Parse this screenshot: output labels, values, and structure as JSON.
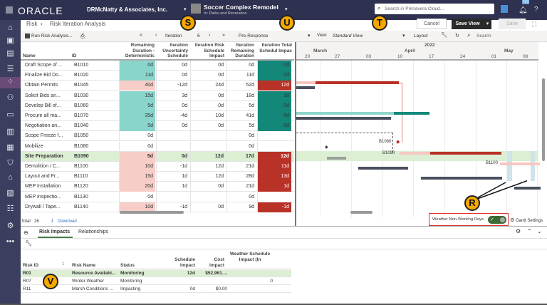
{
  "topbar": {
    "logo": "ORACLE",
    "company": "DRMcNatty & Associates, Inc.",
    "project_name": "Soccer Complex Remodel",
    "project_sub": "In: Parks and Recreation",
    "search_placeholder": "Search in Primavera Cloud...",
    "notification_count": "493"
  },
  "breadcrumb": {
    "root": "Risk",
    "current": "Risk Iteration Analysis"
  },
  "actions": {
    "cancel": "Cancel",
    "save_view": "Save View",
    "save": "Save"
  },
  "toolbar": {
    "run": "Run Risk Analysis...",
    "iteration_label": "Iteration",
    "iteration_value": "6",
    "response": "Pre-Response",
    "view_label": "View:",
    "view_value": "Standard View",
    "layout": "Layout",
    "search": "Search"
  },
  "columns": [
    "Name",
    "ID",
    "Remaining Duration - Deterministic",
    "Iteration Uncertainty Schedule",
    "Iteration Risk Schedule Impact",
    "Iteration Remaining Duration",
    "Iteration Total Schedul Impac"
  ],
  "rows": [
    {
      "name": "Draft Scope of ...",
      "id": "B1010",
      "rdd": "0d",
      "ius": "0d",
      "iri": "0d",
      "ird": "0d",
      "its": "0d",
      "c": "g"
    },
    {
      "name": "Finalize Bid Do...",
      "id": "B1020",
      "rdd": "11d",
      "ius": "0d",
      "iri": "0d",
      "ird": "11d",
      "its": "0d",
      "c": "g"
    },
    {
      "name": "Obtain Permits",
      "id": "B1045",
      "rdd": "40d",
      "ius": "-12d",
      "iri": "24d",
      "ird": "52d",
      "its": "12d",
      "c": "r"
    },
    {
      "name": "Solicit Bids an...",
      "id": "B1030",
      "rdd": "15d",
      "ius": "3d",
      "iri": "0d",
      "ird": "18d",
      "its": "3d",
      "c": "g"
    },
    {
      "name": "Develop Bill of...",
      "id": "B1060",
      "rdd": "5d",
      "ius": "0d",
      "iri": "0d",
      "ird": "5d",
      "its": "0d",
      "c": "g"
    },
    {
      "name": "Procure all ma...",
      "id": "B1070",
      "rdd": "35d",
      "ius": "-4d",
      "iri": "10d",
      "ird": "41d",
      "its": "6d",
      "c": "g"
    },
    {
      "name": "Negotiation an...",
      "id": "B1040",
      "rdd": "5d",
      "ius": "0d",
      "iri": "0d",
      "ird": "5d",
      "its": "0d",
      "c": "g"
    },
    {
      "name": "Scope Freeze f...",
      "id": "B1050",
      "rdd": "0d",
      "ius": "",
      "iri": "",
      "ird": "0d",
      "its": "",
      "c": "n"
    },
    {
      "name": "Mobilize",
      "id": "B1080",
      "rdd": "0d",
      "ius": "",
      "iri": "",
      "ird": "0d",
      "its": "",
      "c": "n"
    },
    {
      "name": "Site Preparation",
      "id": "B1090",
      "rdd": "5d",
      "ius": "0d",
      "iri": "12d",
      "ird": "17d",
      "its": "12d",
      "c": "r"
    },
    {
      "name": "Demolition / C...",
      "id": "B1100",
      "rdd": "10d",
      "ius": "-1d",
      "iri": "12d",
      "ird": "21d",
      "its": "11d",
      "c": "r"
    },
    {
      "name": "Layout and Fr...",
      "id": "B1110",
      "rdd": "15d",
      "ius": "1d",
      "iri": "12d",
      "ird": "28d",
      "its": "13d",
      "c": "r"
    },
    {
      "name": "MEP Installation",
      "id": "B1120",
      "rdd": "20d",
      "ius": "1d",
      "iri": "0d",
      "ird": "21d",
      "its": "1d",
      "c": "r"
    },
    {
      "name": "MEP Inspectio...",
      "id": "B1130",
      "rdd": "0d",
      "ius": "",
      "iri": "",
      "ird": "0d",
      "its": "",
      "c": "n"
    },
    {
      "name": "Drywall / Tape...",
      "id": "B1140",
      "rdd": "10d",
      "ius": "-1d",
      "iri": "0d",
      "ird": "9d",
      "its": "-1d",
      "c": "r"
    }
  ],
  "footer": {
    "total_label": "Total:",
    "total": "26",
    "download": "Download"
  },
  "gantt": {
    "year": "2022",
    "months": [
      "March",
      "April",
      "May"
    ],
    "weeks": [
      "20",
      "27",
      "03",
      "10",
      "17",
      "24",
      "01",
      "08"
    ],
    "labels": [
      "B1080",
      "B1090",
      "B1100"
    ],
    "weather_label": "Weather Non-Working Days",
    "weather_on": true,
    "settings": "Gantt Settings"
  },
  "bottom": {
    "tabs": [
      "Risk Impacts",
      "Relationships"
    ],
    "columns": [
      "Risk ID",
      "Risk Name",
      "Status",
      "Schedule Impact",
      "Cost Impact",
      "Weather Schedule Impact (In"
    ],
    "rows": [
      {
        "id": "R01",
        "name": "Resource Availabi...",
        "status": "Monitoring",
        "sched": "12d",
        "cost": "$52,961....",
        "weather": ""
      },
      {
        "id": "R07",
        "name": "Winter Weather",
        "status": "Monitoring",
        "sched": "",
        "cost": "",
        "weather": "0"
      },
      {
        "id": "R11",
        "name": "Marsh Conditions ...",
        "status": "Impacting",
        "sched": "0d",
        "cost": "$0.00",
        "weather": ""
      }
    ]
  },
  "callouts": {
    "s": "S",
    "u": "U",
    "t": "T",
    "r": "R",
    "v": "V"
  }
}
